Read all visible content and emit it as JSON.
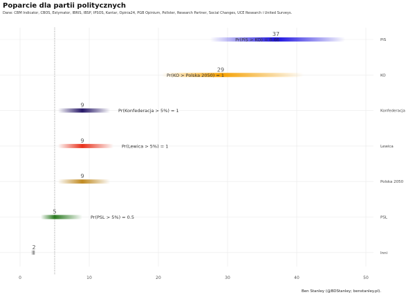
{
  "chart_data": {
    "type": "bar",
    "title": "Poparcie dla partii politycznych",
    "subtitle": "Dane: CBM Indicator, CBOS, Estymator, IBRIS, IBSP, IPSOS, Kantar, Opinia24, PGB Opinium, Pollster, Research Partner, Social Changes, UCE Research i United Surveys.",
    "caption": "Ben Stanley (@BDStanley; benstanley.pl).",
    "xlim": [
      0,
      50
    ],
    "xticks": [
      0,
      10,
      20,
      30,
      40,
      50
    ],
    "threshold": 5,
    "series": [
      {
        "name": "PiS",
        "value": 37,
        "range": [
          27.5,
          47
        ],
        "color": "#1a0fe0",
        "annotation": "Pr(PiS > KO) = 0.66"
      },
      {
        "name": "KO",
        "value": 29,
        "range": [
          20.5,
          41
        ],
        "color": "#f5a000",
        "annotation": "Pr(KO > Polska 2050) = 1"
      },
      {
        "name": "Konfederacja",
        "value": 9,
        "range": [
          5.5,
          13
        ],
        "color": "#241566",
        "annotation": "Pr(Konfederacja > 5%) = 1"
      },
      {
        "name": "Lewica",
        "value": 9,
        "range": [
          5.5,
          13.5
        ],
        "color": "#e8301a",
        "annotation": "Pr(Lewica > 5%) = 1"
      },
      {
        "name": "Polska 2050",
        "value": 9,
        "range": [
          5.5,
          13
        ],
        "color": "#c08a20",
        "annotation": ""
      },
      {
        "name": "PSL",
        "value": 5,
        "range": [
          3,
          9
        ],
        "color": "#2a7a20",
        "annotation": "Pr(PSL > 5%) = 0.5"
      },
      {
        "name": "Inni",
        "value": 2,
        "range": [
          1.6,
          2.2
        ],
        "color": "#888888",
        "annotation": ""
      }
    ]
  }
}
